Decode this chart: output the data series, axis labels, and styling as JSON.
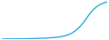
{
  "x": [
    0,
    1,
    2,
    3,
    4,
    5,
    6,
    7,
    8,
    9,
    10,
    11,
    12,
    13,
    14,
    15,
    16,
    17,
    18,
    19,
    20,
    21,
    22,
    23,
    24,
    25,
    26,
    27,
    28,
    29,
    30
  ],
  "y": [
    0.5,
    0.6,
    0.7,
    0.8,
    0.9,
    1.0,
    1.1,
    1.3,
    1.5,
    1.7,
    2.0,
    2.3,
    2.7,
    3.2,
    3.8,
    4.5,
    5.5,
    7.0,
    9.0,
    12.0,
    16.0,
    22.0,
    30.0,
    40.0,
    52.0,
    65.0,
    76.0,
    84.0,
    90.0,
    94.0,
    97.0
  ],
  "line_color": "#2baee0",
  "line_width": 1.0,
  "background_color": "#ffffff",
  "xlim": [
    0,
    30
  ],
  "ylim": [
    0,
    100
  ]
}
